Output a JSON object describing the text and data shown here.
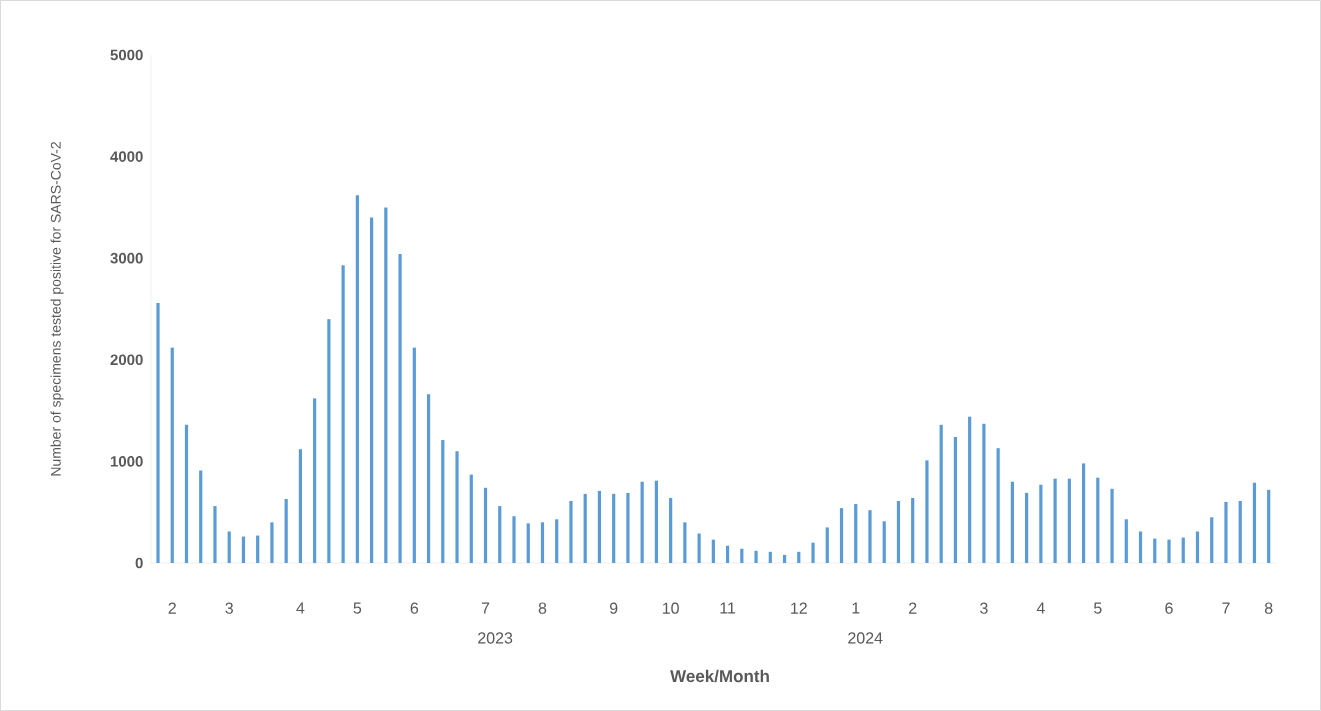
{
  "chart_data": {
    "type": "bar",
    "xlabel": "Week/Month",
    "ylabel": "Number of specimens tested positive for SARS-CoV-2",
    "categories": [
      null,
      "2",
      null,
      null,
      null,
      "3",
      null,
      null,
      null,
      null,
      "4",
      null,
      null,
      null,
      "5",
      null,
      null,
      null,
      "6",
      null,
      null,
      null,
      null,
      "7",
      null,
      null,
      null,
      "8",
      null,
      null,
      null,
      null,
      "9",
      null,
      null,
      null,
      "10",
      null,
      null,
      null,
      "11",
      null,
      null,
      null,
      null,
      "12",
      null,
      null,
      null,
      "1",
      null,
      null,
      null,
      "2",
      null,
      null,
      null,
      null,
      "3",
      null,
      null,
      null,
      "4",
      null,
      null,
      null,
      "5",
      null,
      null,
      null,
      null,
      "6",
      null,
      null,
      null,
      "7",
      null,
      null,
      "8"
    ],
    "values": [
      2560,
      2120,
      1360,
      910,
      560,
      310,
      260,
      270,
      400,
      630,
      1120,
      1620,
      2400,
      2930,
      3620,
      3400,
      3500,
      3040,
      2120,
      1660,
      1210,
      1100,
      870,
      740,
      560,
      460,
      390,
      400,
      430,
      610,
      680,
      710,
      680,
      690,
      800,
      810,
      640,
      400,
      290,
      230,
      170,
      140,
      120,
      110,
      80,
      110,
      200,
      350,
      540,
      580,
      520,
      410,
      610,
      640,
      1010,
      1360,
      1240,
      1440,
      1370,
      1130,
      800,
      690,
      770,
      830,
      830,
      980,
      840,
      730,
      430,
      310,
      240,
      230,
      250,
      310,
      450,
      600,
      610,
      790,
      720
    ],
    "color": "#5b9bd5",
    "ylim": [
      0,
      5000
    ],
    "yticks": [
      0,
      1000,
      2000,
      3000,
      4000,
      5000
    ],
    "annotations": [
      "2023",
      "2024"
    ]
  }
}
